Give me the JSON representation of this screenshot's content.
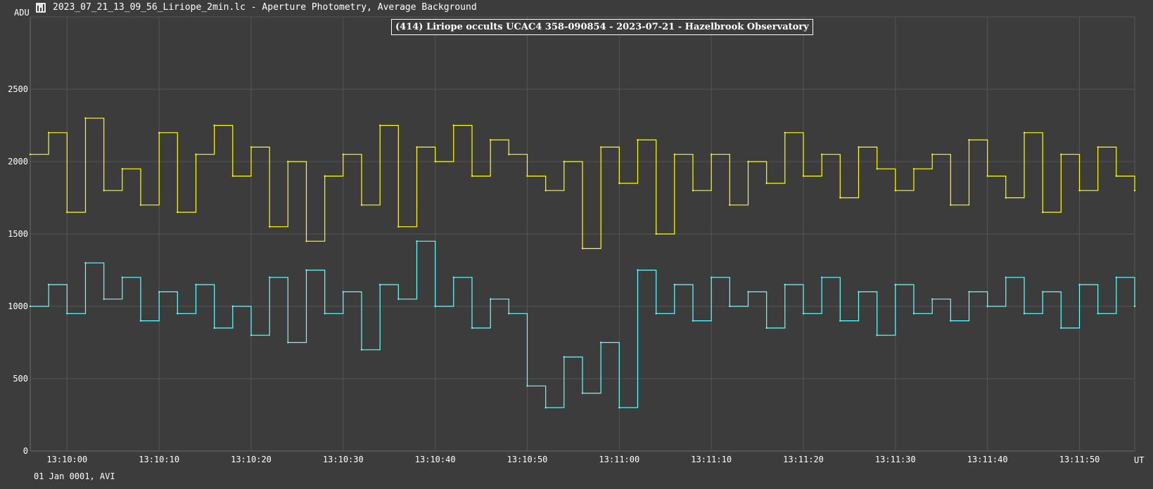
{
  "window": {
    "title": "2023_07_21_13_09_56_Liriope_2min.lc - Aperture Photometry, Average Background"
  },
  "footer": {
    "date_text": "01 Jan 0001, AVI"
  },
  "colors": {
    "background": "#3c3c3c",
    "grid": "#555555",
    "target_series": "#ffff00",
    "comparison_series": "#66ffff"
  },
  "chart_data": {
    "type": "line",
    "title": "(414) Liriope occults UCAC4 358-090854 - 2023-07-21 - Hazelbrook Observatory",
    "ylabel": "ADU",
    "xlabel": "UT",
    "ylim": [
      0,
      3000
    ],
    "xlim": [
      "13:09:56",
      "13:11:56"
    ],
    "grid": true,
    "y_ticks": [
      "0",
      "500",
      "1000",
      "1500",
      "2000",
      "2500"
    ],
    "x_ticks": [
      "13:10:00",
      "13:10:10",
      "13:10:20",
      "13:10:30",
      "13:10:40",
      "13:10:50",
      "13:11:00",
      "13:11:10",
      "13:11:20",
      "13:11:30",
      "13:11:40",
      "13:11:50"
    ],
    "series": [
      {
        "name": "",
        "color": "#ffff00",
        "x": [
          "13:09:56",
          "13:09:58",
          "13:10:00",
          "13:10:02",
          "13:10:04",
          "13:10:06",
          "13:10:08",
          "13:10:10",
          "13:10:12",
          "13:10:14",
          "13:10:16",
          "13:10:18",
          "13:10:20",
          "13:10:22",
          "13:10:24",
          "13:10:26",
          "13:10:28",
          "13:10:30",
          "13:10:32",
          "13:10:34",
          "13:10:36",
          "13:10:38",
          "13:10:40",
          "13:10:42",
          "13:10:44",
          "13:10:46",
          "13:10:48",
          "13:10:50",
          "13:10:52",
          "13:10:54",
          "13:10:56",
          "13:10:58",
          "13:11:00",
          "13:11:02",
          "13:11:04",
          "13:11:06",
          "13:11:08",
          "13:11:10",
          "13:11:12",
          "13:11:14",
          "13:11:16",
          "13:11:18",
          "13:11:20",
          "13:11:22",
          "13:11:24",
          "13:11:26",
          "13:11:28",
          "13:11:30",
          "13:11:32",
          "13:11:34",
          "13:11:36",
          "13:11:38",
          "13:11:40",
          "13:11:42",
          "13:11:44",
          "13:11:46",
          "13:11:48",
          "13:11:50",
          "13:11:52",
          "13:11:54",
          "13:11:56"
        ],
        "y": [
          2050,
          2200,
          1650,
          2300,
          1800,
          1950,
          1700,
          2200,
          1650,
          2050,
          2250,
          1900,
          2100,
          1550,
          2000,
          1450,
          1900,
          2050,
          1700,
          2250,
          1550,
          2100,
          2000,
          2250,
          1900,
          2150,
          2050,
          1900,
          1800,
          2000,
          1400,
          2100,
          1850,
          2150,
          1500,
          2050,
          1800,
          2050,
          1700,
          2000,
          1850,
          2200,
          1900,
          2050,
          1750,
          2100,
          1950,
          1800,
          1950,
          2050,
          1700,
          2150,
          1900,
          1750,
          2200,
          1650,
          2050,
          1800,
          2100,
          1900,
          1800
        ]
      },
      {
        "name": "",
        "color": "#66ffff",
        "x": [
          "13:09:56",
          "13:09:58",
          "13:10:00",
          "13:10:02",
          "13:10:04",
          "13:10:06",
          "13:10:08",
          "13:10:10",
          "13:10:12",
          "13:10:14",
          "13:10:16",
          "13:10:18",
          "13:10:20",
          "13:10:22",
          "13:10:24",
          "13:10:26",
          "13:10:28",
          "13:10:30",
          "13:10:32",
          "13:10:34",
          "13:10:36",
          "13:10:38",
          "13:10:40",
          "13:10:42",
          "13:10:44",
          "13:10:46",
          "13:10:48",
          "13:10:50",
          "13:10:52",
          "13:10:54",
          "13:10:56",
          "13:10:58",
          "13:11:00",
          "13:11:02",
          "13:11:04",
          "13:11:06",
          "13:11:08",
          "13:11:10",
          "13:11:12",
          "13:11:14",
          "13:11:16",
          "13:11:18",
          "13:11:20",
          "13:11:22",
          "13:11:24",
          "13:11:26",
          "13:11:28",
          "13:11:30",
          "13:11:32",
          "13:11:34",
          "13:11:36",
          "13:11:38",
          "13:11:40",
          "13:11:42",
          "13:11:44",
          "13:11:46",
          "13:11:48",
          "13:11:50",
          "13:11:52",
          "13:11:54",
          "13:11:56"
        ],
        "y": [
          1000,
          1150,
          950,
          1300,
          1050,
          1200,
          900,
          1100,
          950,
          1150,
          850,
          1000,
          800,
          1200,
          750,
          1250,
          950,
          1100,
          700,
          1150,
          1050,
          1450,
          1000,
          1200,
          850,
          1050,
          950,
          450,
          300,
          650,
          400,
          750,
          300,
          1250,
          950,
          1150,
          900,
          1200,
          1000,
          1100,
          850,
          1150,
          950,
          1200,
          900,
          1100,
          800,
          1150,
          950,
          1050,
          900,
          1100,
          1000,
          1200,
          950,
          1100,
          850,
          1150,
          950,
          1200,
          1000
        ]
      }
    ]
  }
}
